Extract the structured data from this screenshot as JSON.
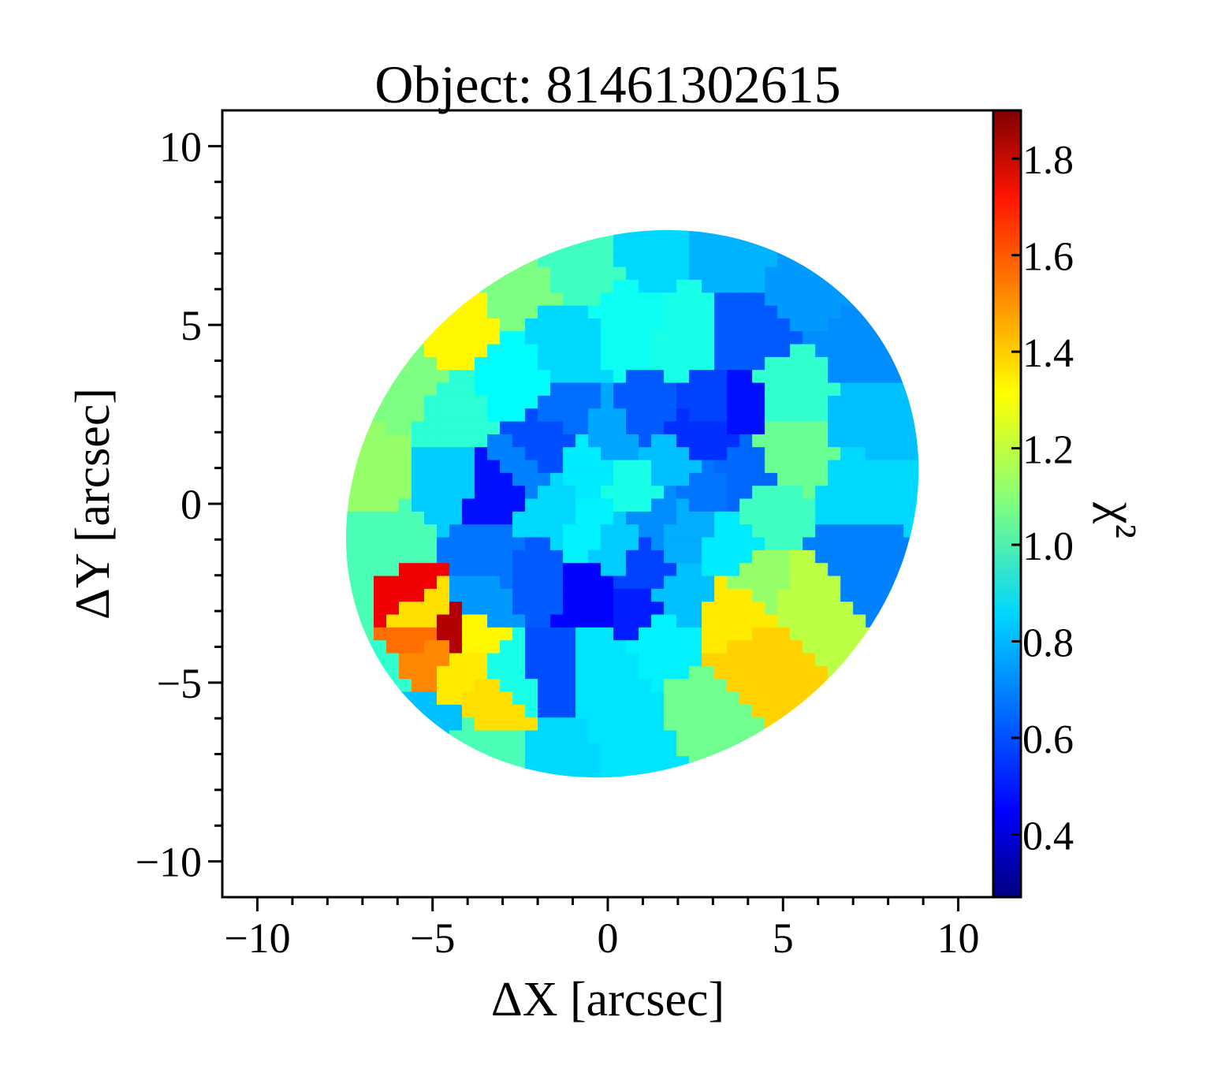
{
  "chart_data": {
    "type": "heatmap",
    "title": "Object: 81461302615",
    "xlabel": "ΔX [arcsec]",
    "ylabel": "ΔY [arcsec]",
    "colorbar_label": "χ²",
    "xlim": [
      -11,
      11
    ],
    "ylim": [
      -11,
      11
    ],
    "x_ticks": [
      -10,
      -5,
      0,
      5,
      10
    ],
    "x_tick_labels": [
      "−10",
      "−5",
      "0",
      "5",
      "10"
    ],
    "y_ticks": [
      10,
      5,
      0,
      -5,
      -10
    ],
    "y_tick_labels": [
      "10",
      "5",
      "0",
      "−5",
      "−10"
    ],
    "colorbar_range": [
      0.27,
      1.9
    ],
    "colorbar_ticks": [
      1.8,
      1.6,
      1.4,
      1.2,
      1.0,
      0.8,
      0.6,
      0.4
    ],
    "colorbar_tick_labels": [
      "1.8",
      "1.6",
      "1.4",
      "1.2",
      "1.0",
      "0.8",
      "0.6",
      "0.4"
    ],
    "colormap": "jet",
    "grid": false,
    "region": {
      "shape": "ellipse",
      "center": [
        0.7,
        0.0
      ],
      "semi_axes": [
        8.5,
        7.3
      ],
      "rotation_deg": 35
    },
    "bins": [
      {
        "x": 0.8,
        "y": 0.4,
        "value": 0.92
      },
      {
        "x": 1.8,
        "y": 1.2,
        "value": 0.78
      },
      {
        "x": -0.6,
        "y": 1.0,
        "value": 0.85
      },
      {
        "x": 0.2,
        "y": -1.2,
        "value": 0.8
      },
      {
        "x": 2.2,
        "y": -0.8,
        "value": 0.75
      },
      {
        "x": -1.6,
        "y": -0.2,
        "value": 0.82
      },
      {
        "x": 1.0,
        "y": 2.5,
        "value": 0.62
      },
      {
        "x": 3.0,
        "y": 2.8,
        "value": 0.58
      },
      {
        "x": 2.6,
        "y": 1.9,
        "value": 0.55
      },
      {
        "x": -1.2,
        "y": 2.6,
        "value": 0.65
      },
      {
        "x": -2.6,
        "y": 1.0,
        "value": 0.68
      },
      {
        "x": -3.2,
        "y": 0.4,
        "value": 0.5
      },
      {
        "x": -3.4,
        "y": -1.6,
        "value": 0.66
      },
      {
        "x": -2.0,
        "y": -2.0,
        "value": 0.62
      },
      {
        "x": -0.4,
        "y": -2.4,
        "value": 0.48
      },
      {
        "x": 0.8,
        "y": -2.8,
        "value": 0.52
      },
      {
        "x": 2.0,
        "y": -2.6,
        "value": 0.78
      },
      {
        "x": 3.4,
        "y": -1.2,
        "value": 0.85
      },
      {
        "x": 3.8,
        "y": 0.8,
        "value": 0.64
      },
      {
        "x": 3.6,
        "y": 2.8,
        "value": 0.5
      },
      {
        "x": -1.8,
        "y": -4.6,
        "value": 0.6
      },
      {
        "x": -3.6,
        "y": -2.6,
        "value": 0.72
      },
      {
        "x": -4.4,
        "y": 2.4,
        "value": 0.95
      },
      {
        "x": -4.6,
        "y": 0.8,
        "value": 0.8
      },
      {
        "x": -2.6,
        "y": 3.4,
        "value": 0.88
      },
      {
        "x": -1.0,
        "y": 4.4,
        "value": 0.82
      },
      {
        "x": 0.6,
        "y": 4.8,
        "value": 0.9
      },
      {
        "x": 2.2,
        "y": 4.6,
        "value": 0.92
      },
      {
        "x": 4.0,
        "y": 4.6,
        "value": 0.62
      },
      {
        "x": 5.2,
        "y": 3.2,
        "value": 0.96
      },
      {
        "x": 5.2,
        "y": 1.4,
        "value": 1.05
      },
      {
        "x": 4.6,
        "y": -0.2,
        "value": 0.98
      },
      {
        "x": 4.2,
        "y": -2.0,
        "value": 1.12
      },
      {
        "x": 3.6,
        "y": -3.0,
        "value": 1.32
      },
      {
        "x": 1.6,
        "y": -3.8,
        "value": 0.86
      },
      {
        "x": -0.2,
        "y": -4.6,
        "value": 0.84
      },
      {
        "x": -2.6,
        "y": -4.8,
        "value": 0.92
      },
      {
        "x": -4.2,
        "y": -4.6,
        "value": 1.32
      },
      {
        "x": -4.0,
        "y": -3.6,
        "value": 1.3
      },
      {
        "x": -5.4,
        "y": -3.0,
        "value": 1.34
      },
      {
        "x": -5.8,
        "y": -2.4,
        "value": 1.72
      },
      {
        "x": -5.4,
        "y": -3.6,
        "value": 1.52
      },
      {
        "x": -4.4,
        "y": -3.6,
        "value": 1.82
      },
      {
        "x": -5.0,
        "y": -4.2,
        "value": 1.48
      },
      {
        "x": -3.2,
        "y": -5.4,
        "value": 1.34
      },
      {
        "x": -6.2,
        "y": -1.2,
        "value": 1.0
      },
      {
        "x": -6.6,
        "y": 1.0,
        "value": 1.12
      },
      {
        "x": -5.8,
        "y": 3.2,
        "value": 1.08
      },
      {
        "x": -4.2,
        "y": 5.0,
        "value": 1.3
      },
      {
        "x": -2.8,
        "y": 6.2,
        "value": 1.08
      },
      {
        "x": -0.8,
        "y": 7.0,
        "value": 0.98
      },
      {
        "x": 1.2,
        "y": 7.4,
        "value": 0.82
      },
      {
        "x": 3.6,
        "y": 7.2,
        "value": 0.76
      },
      {
        "x": 5.8,
        "y": 6.2,
        "value": 0.72
      },
      {
        "x": 7.2,
        "y": 4.4,
        "value": 0.7
      },
      {
        "x": 7.6,
        "y": 2.4,
        "value": 0.78
      },
      {
        "x": 7.2,
        "y": 0.4,
        "value": 0.82
      },
      {
        "x": 7.0,
        "y": -1.6,
        "value": 0.68
      },
      {
        "x": 5.8,
        "y": -2.6,
        "value": 1.18
      },
      {
        "x": 4.2,
        "y": -4.4,
        "value": 1.36
      },
      {
        "x": 2.8,
        "y": -5.8,
        "value": 1.06
      },
      {
        "x": 0.8,
        "y": -6.6,
        "value": 0.84
      },
      {
        "x": -1.4,
        "y": -7.2,
        "value": 0.82
      },
      {
        "x": -3.6,
        "y": -7.0,
        "value": 1.0
      },
      {
        "x": -5.4,
        "y": -6.2,
        "value": 0.78
      },
      {
        "x": -6.8,
        "y": -4.8,
        "value": 0.96
      },
      {
        "x": -7.4,
        "y": -2.6,
        "value": 1.0
      },
      {
        "x": 0.2,
        "y": 2.0,
        "value": 0.74
      },
      {
        "x": -0.6,
        "y": -0.6,
        "value": 0.86
      },
      {
        "x": 1.4,
        "y": -0.4,
        "value": 0.7
      },
      {
        "x": 2.8,
        "y": 0.4,
        "value": 0.66
      },
      {
        "x": -1.8,
        "y": 1.8,
        "value": 0.6
      },
      {
        "x": 1.0,
        "y": -1.8,
        "value": 0.58
      }
    ]
  }
}
